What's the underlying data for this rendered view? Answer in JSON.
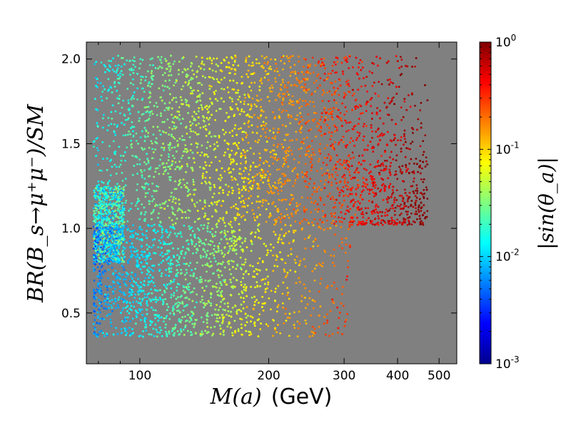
{
  "chart_data": {
    "type": "scatter",
    "title": "",
    "xlabel": {
      "math": "M(a)",
      "unit": "(GeV)"
    },
    "ylabel": "BR(B_s→μ⁺μ⁻)/SM",
    "x_scale": "log",
    "xlim": [
      75,
      550
    ],
    "ylim": [
      0.2,
      2.1
    ],
    "x_ticks": [
      100,
      200,
      300,
      400,
      500
    ],
    "x_tick_labels": [
      "100",
      "200",
      "300",
      "400",
      "500"
    ],
    "y_ticks": [
      0.5,
      1.0,
      1.5,
      2.0
    ],
    "y_tick_labels": [
      "0.5",
      "1.0",
      "1.5",
      "2.0"
    ],
    "background_color": "#808080",
    "grid": false,
    "legend": "none",
    "colorbar": {
      "label": "|sin(θ_a)|",
      "scale": "log",
      "range": [
        0.001,
        1
      ],
      "colormap": "jet",
      "ticks": [
        {
          "value": 1,
          "base": "10",
          "exp": "0"
        },
        {
          "value": 0.1,
          "base": "10",
          "exp": "-1"
        },
        {
          "value": 0.01,
          "base": "10",
          "exp": "-2"
        },
        {
          "value": 0.001,
          "base": "10",
          "exp": "-3"
        }
      ]
    },
    "point_density_regions": [
      {
        "x_range": [
          78,
          470
        ],
        "y_range": [
          1.02,
          2.02
        ],
        "sin_theta_range": [
          0.02,
          1.0
        ],
        "description_color_trend": "increases with mass"
      },
      {
        "x_range": [
          78,
          310
        ],
        "y_range": [
          0.36,
          1.02
        ],
        "sin_theta_range": [
          0.004,
          0.3
        ],
        "description_color_trend": "increases with mass"
      }
    ],
    "sample_points": [
      {
        "x": 80,
        "y": 1.0,
        "c": 0.008
      },
      {
        "x": 82,
        "y": 0.8,
        "c": 0.004
      },
      {
        "x": 85,
        "y": 0.55,
        "c": 0.005
      },
      {
        "x": 90,
        "y": 1.2,
        "c": 0.02
      },
      {
        "x": 95,
        "y": 1.8,
        "c": 0.06
      },
      {
        "x": 100,
        "y": 1.5,
        "c": 0.05
      },
      {
        "x": 110,
        "y": 0.9,
        "c": 0.02
      },
      {
        "x": 120,
        "y": 1.3,
        "c": 0.07
      },
      {
        "x": 140,
        "y": 1.9,
        "c": 0.12
      },
      {
        "x": 150,
        "y": 0.6,
        "c": 0.05
      },
      {
        "x": 180,
        "y": 1.4,
        "c": 0.15
      },
      {
        "x": 200,
        "y": 1.7,
        "c": 0.25
      },
      {
        "x": 220,
        "y": 0.4,
        "c": 0.08
      },
      {
        "x": 250,
        "y": 1.2,
        "c": 0.35
      },
      {
        "x": 280,
        "y": 1.9,
        "c": 0.45
      },
      {
        "x": 300,
        "y": 0.5,
        "c": 0.2
      },
      {
        "x": 350,
        "y": 1.1,
        "c": 0.6
      },
      {
        "x": 400,
        "y": 1.6,
        "c": 0.7
      },
      {
        "x": 450,
        "y": 1.3,
        "c": 0.8
      },
      {
        "x": 470,
        "y": 1.05,
        "c": 0.9
      }
    ]
  }
}
